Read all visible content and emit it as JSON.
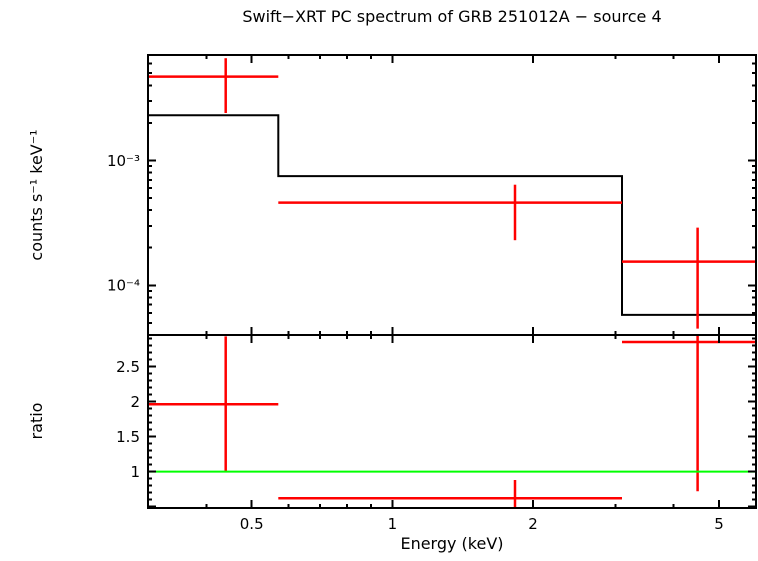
{
  "style": {
    "background_color": "#ffffff",
    "frame_color": "#000000",
    "text_color": "#000000",
    "data_color": "#ff0000",
    "model_color": "#000000",
    "reference_color": "#00ff00"
  },
  "chart_data": {
    "type": "scatter",
    "title": "Swift−XRT PC spectrum of GRB 251012A − source 4",
    "xlabel": "Energy (keV)",
    "xscale": "log",
    "xlim": [
      0.3,
      6.0
    ],
    "x_major_ticks": [
      0.5,
      1,
      2,
      5
    ],
    "x_major_labels": [
      "0.5",
      "1",
      "2",
      "5"
    ],
    "x_minor_ticks": [
      0.3,
      0.4,
      0.6,
      0.7,
      0.8,
      0.9,
      3,
      4,
      6
    ],
    "legend": "none",
    "grid": "off",
    "panels": [
      {
        "name": "spectrum",
        "ylabel": "counts s⁻¹ keV⁻¹",
        "yscale": "log",
        "ylim": [
          4e-05,
          0.007
        ],
        "y_major_ticks": [
          0.0001,
          0.001
        ],
        "y_major_labels": [
          "10⁻⁴",
          "10⁻³"
        ],
        "model_step": [
          {
            "x0": 0.3,
            "x1": 0.57,
            "y": 0.0023
          },
          {
            "x0": 0.57,
            "x1": 3.1,
            "y": 0.00075
          },
          {
            "x0": 3.1,
            "x1": 6.0,
            "y": 5.8e-05
          }
        ],
        "points": [
          {
            "x": 0.44,
            "xlo": 0.3,
            "xhi": 0.57,
            "y": 0.0047,
            "ylo": 0.0024,
            "yhi": 0.0066
          },
          {
            "x": 1.83,
            "xlo": 0.57,
            "xhi": 3.1,
            "y": 0.00046,
            "ylo": 0.00023,
            "yhi": 0.00064
          },
          {
            "x": 4.5,
            "xlo": 3.1,
            "xhi": 6.0,
            "y": 0.000155,
            "ylo": 4.5e-05,
            "yhi": 0.00029
          }
        ]
      },
      {
        "name": "ratio",
        "ylabel": "ratio",
        "yscale": "linear",
        "ylim": [
          0.48,
          2.95
        ],
        "y_major_ticks": [
          0.5,
          1,
          1.5,
          2,
          2.5
        ],
        "y_major_labels": [
          "",
          "1",
          "1.5",
          "2",
          "2.5"
        ],
        "y_minor_step": 0.1,
        "reference_line": {
          "y": 1.0,
          "color": "#00ff00"
        },
        "points": [
          {
            "x": 0.44,
            "xlo": 0.3,
            "xhi": 0.57,
            "y": 1.96,
            "ylo": 0.99,
            "yhi": 2.93
          },
          {
            "x": 1.83,
            "xlo": 0.57,
            "xhi": 3.1,
            "y": 0.62,
            "ylo": 0.48,
            "yhi": 0.88
          },
          {
            "x": 4.5,
            "xlo": 3.1,
            "xhi": 6.0,
            "y": 2.85,
            "ylo": 0.72,
            "yhi": 2.95
          }
        ]
      }
    ]
  }
}
